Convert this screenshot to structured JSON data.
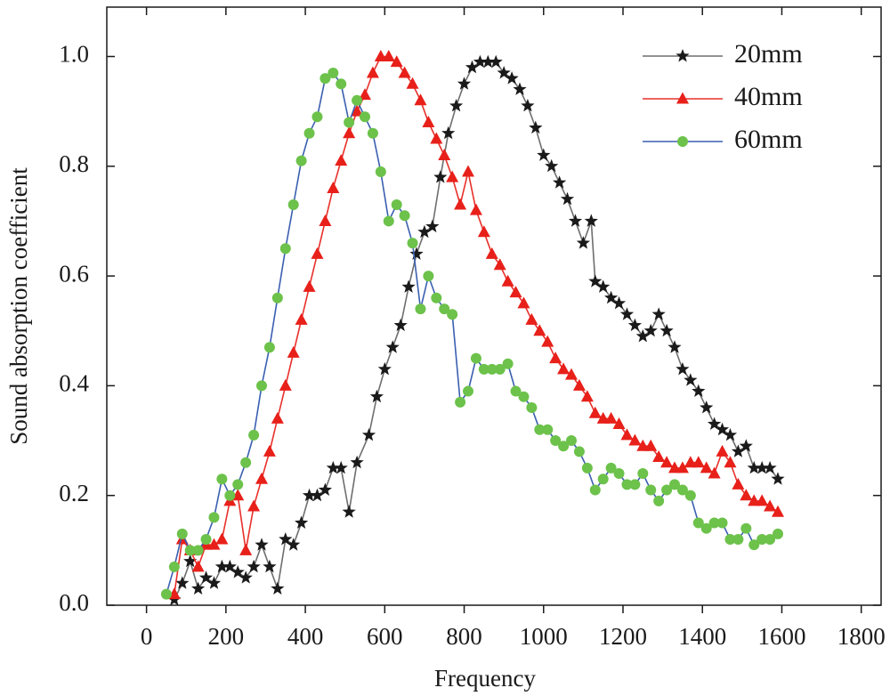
{
  "chart_data": {
    "type": "line",
    "xlabel": "Frequency",
    "ylabel": "Sound absorption coefficient",
    "xlim": [
      -100,
      1850
    ],
    "ylim": [
      0,
      1.09
    ],
    "xticks": [
      0,
      200,
      400,
      600,
      800,
      1000,
      1200,
      1400,
      1600,
      1800
    ],
    "yticks": [
      {
        "value": 0,
        "label": "0.0"
      },
      0.2,
      0.4,
      0.6,
      0.8,
      {
        "value": 1,
        "label": "1.0"
      }
    ],
    "legend": "upper right",
    "series": [
      {
        "name": "20mm",
        "color": "#6e6e6e",
        "marker": "star",
        "marker_color": "#1a1a1a",
        "x": [
          70,
          90,
          110,
          130,
          150,
          170,
          190,
          210,
          230,
          250,
          270,
          290,
          310,
          330,
          350,
          370,
          390,
          410,
          430,
          450,
          470,
          490,
          510,
          530,
          560,
          580,
          600,
          620,
          640,
          660,
          680,
          700,
          720,
          740,
          760,
          780,
          800,
          820,
          840,
          860,
          880,
          900,
          920,
          940,
          960,
          980,
          1000,
          1020,
          1040,
          1060,
          1080,
          1100,
          1120,
          1130,
          1150,
          1170,
          1190,
          1210,
          1230,
          1250,
          1270,
          1290,
          1310,
          1330,
          1350,
          1370,
          1390,
          1410,
          1430,
          1450,
          1470,
          1490,
          1510,
          1530,
          1550,
          1570,
          1590
        ],
        "values": [
          0.01,
          0.04,
          0.08,
          0.03,
          0.05,
          0.04,
          0.07,
          0.07,
          0.06,
          0.05,
          0.07,
          0.11,
          0.07,
          0.03,
          0.12,
          0.11,
          0.15,
          0.2,
          0.2,
          0.21,
          0.25,
          0.25,
          0.17,
          0.26,
          0.31,
          0.38,
          0.43,
          0.47,
          0.51,
          0.58,
          0.64,
          0.68,
          0.69,
          0.78,
          0.86,
          0.91,
          0.95,
          0.98,
          0.99,
          0.99,
          0.99,
          0.97,
          0.96,
          0.94,
          0.91,
          0.87,
          0.82,
          0.8,
          0.77,
          0.74,
          0.7,
          0.66,
          0.7,
          0.59,
          0.58,
          0.56,
          0.55,
          0.53,
          0.51,
          0.49,
          0.5,
          0.53,
          0.5,
          0.47,
          0.43,
          0.41,
          0.39,
          0.36,
          0.33,
          0.32,
          0.31,
          0.28,
          0.29,
          0.25,
          0.25,
          0.25,
          0.23
        ]
      },
      {
        "name": "40mm",
        "color": "#e8302a",
        "marker": "triangle",
        "marker_color": "#e8201a",
        "x": [
          70,
          90,
          110,
          130,
          150,
          170,
          190,
          210,
          230,
          250,
          270,
          290,
          310,
          330,
          350,
          370,
          390,
          410,
          430,
          450,
          470,
          490,
          510,
          530,
          550,
          570,
          590,
          610,
          630,
          650,
          670,
          690,
          710,
          730,
          750,
          770,
          790,
          810,
          830,
          850,
          870,
          890,
          910,
          930,
          950,
          970,
          990,
          1010,
          1030,
          1050,
          1070,
          1090,
          1110,
          1130,
          1150,
          1170,
          1190,
          1210,
          1230,
          1250,
          1270,
          1290,
          1310,
          1330,
          1350,
          1370,
          1390,
          1410,
          1430,
          1450,
          1470,
          1490,
          1510,
          1530,
          1550,
          1570,
          1590
        ],
        "values": [
          0.02,
          0.12,
          0.1,
          0.07,
          0.11,
          0.11,
          0.12,
          0.19,
          0.2,
          0.1,
          0.18,
          0.23,
          0.28,
          0.34,
          0.4,
          0.46,
          0.52,
          0.58,
          0.64,
          0.7,
          0.76,
          0.81,
          0.86,
          0.9,
          0.93,
          0.97,
          1.0,
          1.0,
          0.99,
          0.97,
          0.95,
          0.92,
          0.88,
          0.85,
          0.82,
          0.78,
          0.73,
          0.79,
          0.72,
          0.68,
          0.64,
          0.62,
          0.59,
          0.57,
          0.55,
          0.52,
          0.5,
          0.48,
          0.45,
          0.43,
          0.42,
          0.4,
          0.38,
          0.35,
          0.34,
          0.34,
          0.33,
          0.31,
          0.3,
          0.29,
          0.29,
          0.27,
          0.26,
          0.25,
          0.25,
          0.26,
          0.26,
          0.25,
          0.24,
          0.28,
          0.26,
          0.22,
          0.2,
          0.19,
          0.19,
          0.18,
          0.17
        ]
      },
      {
        "name": "60mm",
        "color": "#3a5fb0",
        "marker": "circle",
        "marker_color": "#6cc24a",
        "x": [
          50,
          70,
          90,
          110,
          130,
          150,
          170,
          190,
          210,
          230,
          250,
          270,
          290,
          310,
          330,
          350,
          370,
          390,
          410,
          430,
          450,
          470,
          490,
          510,
          530,
          550,
          570,
          590,
          610,
          630,
          650,
          670,
          690,
          710,
          730,
          750,
          770,
          790,
          810,
          830,
          850,
          870,
          890,
          910,
          930,
          950,
          970,
          990,
          1010,
          1030,
          1050,
          1070,
          1090,
          1110,
          1130,
          1150,
          1170,
          1190,
          1210,
          1230,
          1250,
          1270,
          1290,
          1310,
          1330,
          1350,
          1370,
          1390,
          1410,
          1430,
          1450,
          1470,
          1490,
          1510,
          1530,
          1550,
          1570,
          1590
        ],
        "values": [
          0.02,
          0.07,
          0.13,
          0.1,
          0.1,
          0.12,
          0.16,
          0.23,
          0.2,
          0.22,
          0.26,
          0.31,
          0.4,
          0.47,
          0.56,
          0.65,
          0.73,
          0.81,
          0.86,
          0.89,
          0.96,
          0.97,
          0.95,
          0.88,
          0.92,
          0.89,
          0.86,
          0.79,
          0.7,
          0.73,
          0.71,
          0.66,
          0.54,
          0.6,
          0.56,
          0.54,
          0.53,
          0.37,
          0.39,
          0.45,
          0.43,
          0.43,
          0.43,
          0.44,
          0.39,
          0.38,
          0.36,
          0.32,
          0.32,
          0.3,
          0.29,
          0.3,
          0.28,
          0.25,
          0.21,
          0.23,
          0.25,
          0.24,
          0.22,
          0.22,
          0.24,
          0.21,
          0.19,
          0.21,
          0.22,
          0.21,
          0.2,
          0.15,
          0.14,
          0.15,
          0.15,
          0.12,
          0.12,
          0.14,
          0.11,
          0.12,
          0.12,
          0.13
        ]
      }
    ]
  }
}
